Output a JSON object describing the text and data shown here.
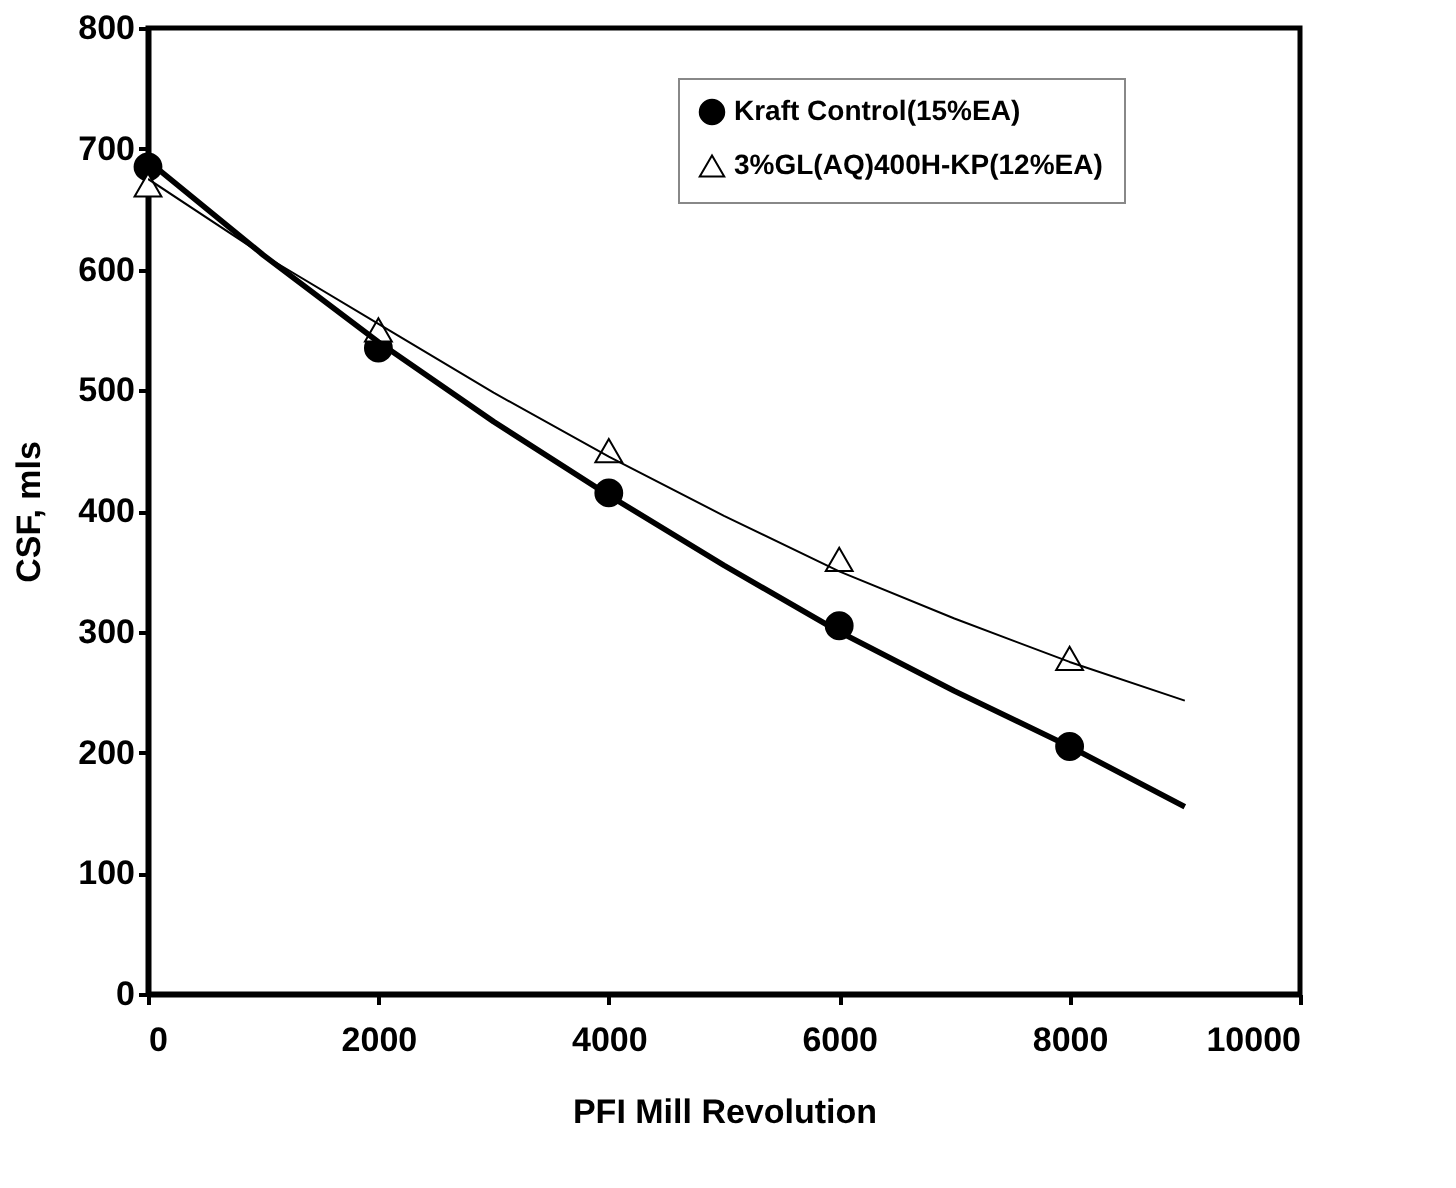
{
  "chart_data": {
    "type": "scatter",
    "xlabel": "PFI Mill Revolution",
    "ylabel": "CSF, mls",
    "xlim": [
      0,
      10000
    ],
    "xticks": [
      0,
      2000,
      4000,
      6000,
      8000,
      10000
    ],
    "ylim": [
      0,
      800
    ],
    "yticks": [
      0,
      100,
      200,
      300,
      400,
      500,
      600,
      700,
      800
    ],
    "grid": false,
    "legend": "top right",
    "series": [
      {
        "name": "Kraft Control(15%EA)",
        "marker": "circle",
        "color": "#000000",
        "x": [
          0,
          2000,
          4000,
          6000,
          8000
        ],
        "values": [
          685,
          535,
          415,
          305,
          205
        ]
      },
      {
        "name": "3%GL(AQ)400H-KP(12%EA)",
        "marker": "triangle",
        "color": "#ffffff",
        "x": [
          0,
          2000,
          4000,
          6000,
          8000
        ],
        "values": [
          670,
          550,
          450,
          360,
          278
        ]
      },
      {
        "type": "line",
        "color": "#000000",
        "x": [
          0,
          1000,
          2000,
          3000,
          4000,
          5000,
          6000,
          7000,
          8000,
          9000
        ],
        "values": [
          690,
          612,
          540,
          474,
          413,
          355,
          300,
          251,
          205,
          155
        ]
      },
      {
        "type": "line",
        "color": "#000000",
        "x": [
          0,
          1000,
          2000,
          3000,
          4000,
          5000,
          6000,
          7000,
          8000,
          9000
        ],
        "values": [
          675,
          612,
          555,
          498,
          445,
          396,
          350,
          311,
          275,
          243
        ]
      }
    ]
  }
}
